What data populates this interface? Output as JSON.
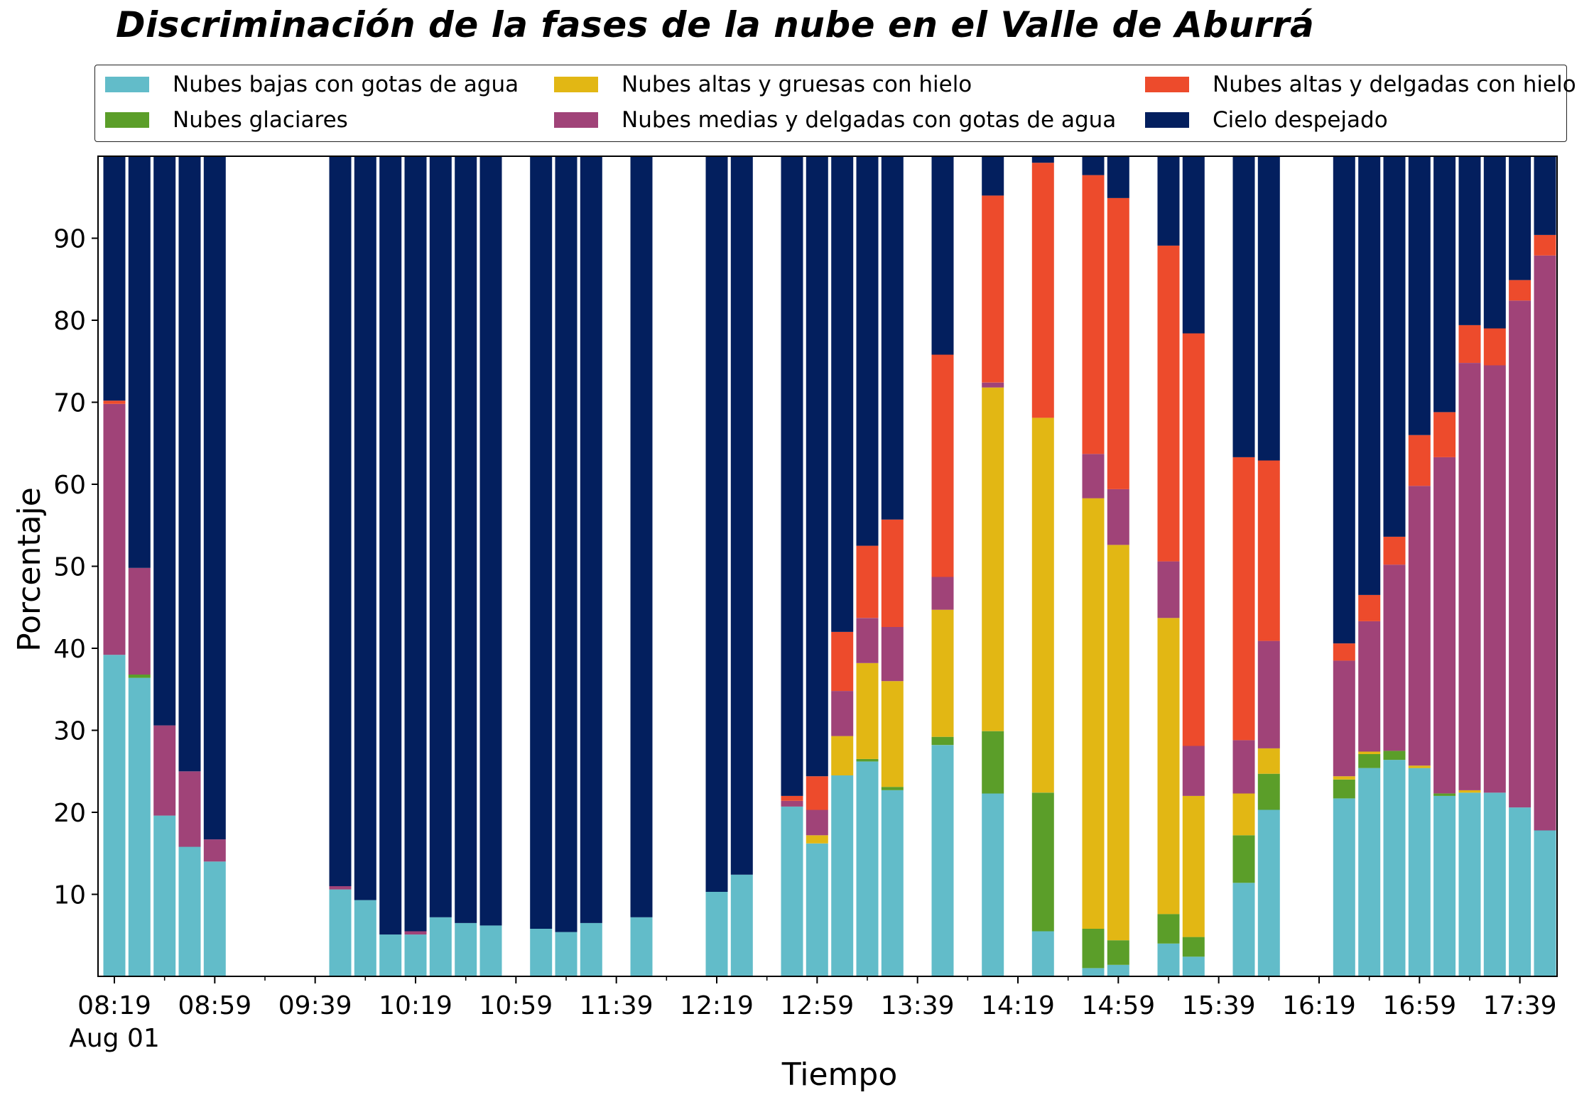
{
  "chart_data": {
    "type": "bar",
    "stacked": true,
    "title": "Discriminación de la fases de la nube en el Valle de Aburrá",
    "xlabel": "Tiempo",
    "ylabel": "Porcentaje",
    "x_tick_labels": [
      "08:19",
      "08:59",
      "09:39",
      "10:19",
      "10:59",
      "11:39",
      "12:19",
      "12:59",
      "13:39",
      "14:19",
      "14:59",
      "15:39",
      "16:19",
      "16:59",
      "17:39"
    ],
    "x_date_label": "Aug 01",
    "y_ticks": [
      10,
      20,
      30,
      40,
      50,
      60,
      70,
      80,
      90
    ],
    "ylim": [
      0,
      100
    ],
    "grid": false,
    "legend_position": "top",
    "x": [
      "08:19",
      "08:29",
      "08:39",
      "08:49",
      "08:59",
      "09:49",
      "09:59",
      "10:09",
      "10:19",
      "10:29",
      "10:39",
      "10:49",
      "11:09",
      "11:19",
      "11:29",
      "11:49",
      "12:19",
      "12:29",
      "12:49",
      "12:59",
      "13:09",
      "13:19",
      "13:29",
      "13:49",
      "14:09",
      "14:29",
      "14:49",
      "14:59",
      "15:19",
      "15:29",
      "15:49",
      "15:59",
      "16:29",
      "16:39",
      "16:49",
      "16:59",
      "17:09",
      "17:19",
      "17:29",
      "17:39",
      "17:49"
    ],
    "series": [
      {
        "name": "Nubes bajas con gotas de agua",
        "color": "#62bcc9",
        "values": [
          39.2,
          36.4,
          19.6,
          15.8,
          14.0,
          10.6,
          9.3,
          5.1,
          5.1,
          7.2,
          6.5,
          6.2,
          5.8,
          5.4,
          6.5,
          7.2,
          10.3,
          12.4,
          20.7,
          16.2,
          24.5,
          26.2,
          22.7,
          28.2,
          22.3,
          5.5,
          1.0,
          1.4,
          4.0,
          2.4,
          11.4,
          20.3,
          21.7,
          25.4,
          26.4,
          25.4,
          22.0,
          22.4,
          22.4,
          20.6,
          17.8
        ]
      },
      {
        "name": "Nubes glaciares",
        "color": "#5b9e29",
        "values": [
          0,
          0.4,
          0,
          0,
          0,
          0,
          0,
          0,
          0,
          0,
          0,
          0,
          0,
          0,
          0,
          0,
          0,
          0,
          0,
          0,
          0,
          0.3,
          0.4,
          1.0,
          7.6,
          16.9,
          4.8,
          3.0,
          3.6,
          2.4,
          5.8,
          4.4,
          2.3,
          1.7,
          1.1,
          0,
          0.3,
          0,
          0,
          0,
          0
        ]
      },
      {
        "name": "Nubes altas y gruesas con hielo",
        "color": "#e2b714",
        "values": [
          0,
          0,
          0,
          0,
          0,
          0,
          0,
          0,
          0,
          0,
          0,
          0,
          0,
          0,
          0,
          0,
          0,
          0,
          0,
          1.0,
          4.8,
          11.7,
          12.9,
          15.5,
          41.9,
          45.7,
          52.5,
          48.2,
          36.1,
          17.2,
          5.1,
          3.1,
          0.4,
          0.3,
          0,
          0.3,
          0,
          0.3,
          0,
          0,
          0
        ]
      },
      {
        "name": "Nubes medias y delgadas con gotas de agua",
        "color": "#a04378",
        "values": [
          30.6,
          13.0,
          11.0,
          9.2,
          2.7,
          0.4,
          0,
          0,
          0.4,
          0,
          0,
          0,
          0,
          0,
          0,
          0,
          0,
          0,
          0.7,
          3.1,
          5.5,
          5.5,
          6.6,
          4.0,
          0.6,
          0,
          5.4,
          6.8,
          6.9,
          6.1,
          6.5,
          13.1,
          14.1,
          15.9,
          22.7,
          34.1,
          41.0,
          52.1,
          52.1,
          61.8,
          70.1
        ]
      },
      {
        "name": "Nubes altas y delgadas con hielo",
        "color": "#ed4b2c",
        "values": [
          0.4,
          0,
          0,
          0,
          0,
          0,
          0,
          0,
          0,
          0,
          0,
          0,
          0,
          0,
          0,
          0,
          0,
          0,
          0.6,
          4.1,
          7.2,
          8.8,
          13.1,
          27.1,
          22.8,
          31.1,
          34.0,
          35.5,
          38.5,
          50.3,
          34.5,
          22.0,
          2.1,
          3.2,
          3.4,
          6.2,
          5.5,
          4.6,
          4.5,
          2.5,
          2.5
        ]
      },
      {
        "name": "Cielo despejado",
        "color": "#031f5e",
        "values": [
          29.8,
          50.2,
          69.4,
          75.0,
          83.3,
          89.0,
          90.7,
          94.9,
          94.5,
          92.8,
          93.5,
          93.8,
          94.2,
          94.6,
          93.5,
          92.8,
          89.7,
          87.6,
          78.0,
          75.6,
          58.0,
          47.5,
          44.3,
          24.2,
          4.8,
          0.8,
          2.3,
          5.1,
          10.9,
          21.6,
          36.7,
          37.1,
          59.4,
          53.5,
          46.4,
          34.0,
          31.2,
          20.6,
          21.0,
          15.1,
          9.6
        ]
      }
    ]
  }
}
